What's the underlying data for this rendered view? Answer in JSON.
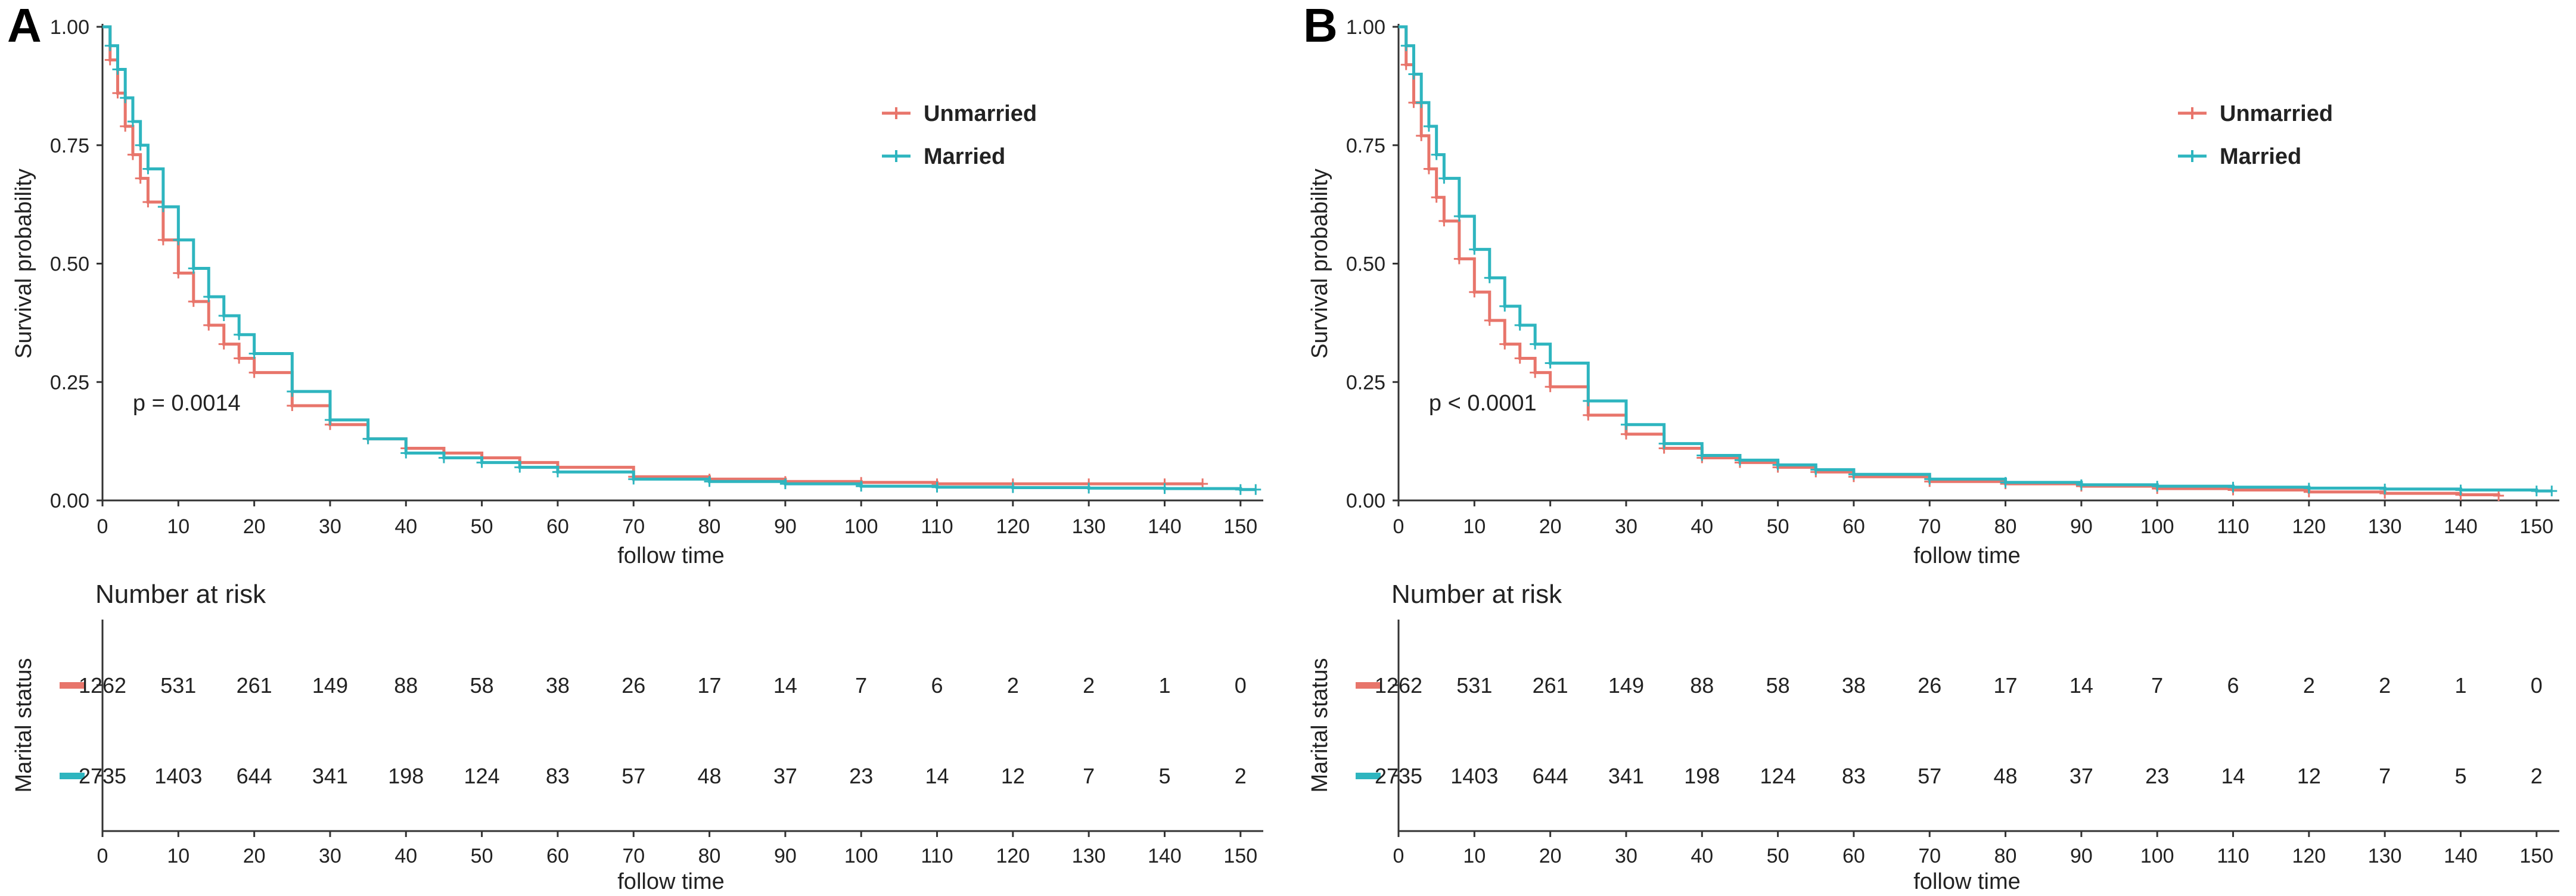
{
  "chart_data": [
    {
      "type": "line",
      "panel": "A",
      "xlabel": "follow time",
      "ylabel": "Survival probability",
      "xticks": [
        0,
        10,
        20,
        30,
        40,
        50,
        60,
        70,
        80,
        90,
        100,
        110,
        120,
        130,
        140,
        150
      ],
      "yticks": [
        "0.00",
        "0.25",
        "0.50",
        "0.75",
        "1.00"
      ],
      "xlim": [
        0,
        153
      ],
      "ylim": [
        0,
        1
      ],
      "pvalue": "p = 0.0014",
      "legend": {
        "position": "top-right",
        "entries": [
          "Unmarried",
          "Married"
        ]
      },
      "series": [
        {
          "name": "Unmarried",
          "color": "#E8756B",
          "x": [
            0,
            1,
            2,
            3,
            4,
            5,
            6,
            8,
            10,
            12,
            14,
            16,
            18,
            20,
            25,
            30,
            35,
            40,
            45,
            50,
            55,
            60,
            70,
            80,
            90,
            100,
            110,
            120,
            130,
            140,
            145
          ],
          "y": [
            1.0,
            0.93,
            0.86,
            0.79,
            0.73,
            0.68,
            0.63,
            0.55,
            0.48,
            0.42,
            0.37,
            0.33,
            0.3,
            0.27,
            0.2,
            0.16,
            0.13,
            0.11,
            0.1,
            0.09,
            0.08,
            0.07,
            0.05,
            0.045,
            0.04,
            0.038,
            0.035,
            0.035,
            0.035,
            0.035,
            0.035
          ]
        },
        {
          "name": "Married",
          "color": "#2EB5BF",
          "x": [
            0,
            1,
            2,
            3,
            4,
            5,
            6,
            8,
            10,
            12,
            14,
            16,
            18,
            20,
            25,
            30,
            35,
            40,
            45,
            50,
            55,
            60,
            70,
            80,
            90,
            100,
            110,
            120,
            130,
            140,
            150,
            152
          ],
          "y": [
            1.0,
            0.96,
            0.91,
            0.85,
            0.8,
            0.75,
            0.7,
            0.62,
            0.55,
            0.49,
            0.43,
            0.39,
            0.35,
            0.31,
            0.23,
            0.17,
            0.13,
            0.1,
            0.09,
            0.08,
            0.07,
            0.06,
            0.045,
            0.04,
            0.035,
            0.03,
            0.028,
            0.027,
            0.026,
            0.025,
            0.023,
            0.023
          ]
        }
      ],
      "risk_table": {
        "title": "Number at risk",
        "ylabel": "Marital status",
        "xlabel": "follow time",
        "times": [
          0,
          10,
          20,
          30,
          40,
          50,
          60,
          70,
          80,
          90,
          100,
          110,
          120,
          130,
          140,
          150
        ],
        "rows": [
          {
            "name": "Unmarried",
            "color": "#E8756B",
            "values": [
              "1262",
              "531",
              "261",
              "149",
              "88",
              "58",
              "38",
              "26",
              "17",
              "14",
              "7",
              "6",
              "2",
              "2",
              "1",
              "0"
            ]
          },
          {
            "name": "Married",
            "color": "#2EB5BF",
            "values": [
              "2735",
              "1403",
              "644",
              "341",
              "198",
              "124",
              "83",
              "57",
              "48",
              "37",
              "23",
              "14",
              "12",
              "7",
              "5",
              "2"
            ]
          }
        ]
      }
    },
    {
      "type": "line",
      "panel": "B",
      "xlabel": "follow time",
      "ylabel": "Survival probability",
      "xticks": [
        0,
        10,
        20,
        30,
        40,
        50,
        60,
        70,
        80,
        90,
        100,
        110,
        120,
        130,
        140,
        150
      ],
      "yticks": [
        "0.00",
        "0.25",
        "0.50",
        "0.75",
        "1.00"
      ],
      "xlim": [
        0,
        153
      ],
      "ylim": [
        0,
        1
      ],
      "pvalue": "p < 0.0001",
      "legend": {
        "position": "top-right",
        "entries": [
          "Unmarried",
          "Married"
        ]
      },
      "series": [
        {
          "name": "Unmarried",
          "color": "#E8756B",
          "x": [
            0,
            1,
            2,
            3,
            4,
            5,
            6,
            8,
            10,
            12,
            14,
            16,
            18,
            20,
            25,
            30,
            35,
            40,
            45,
            50,
            55,
            60,
            70,
            80,
            90,
            100,
            110,
            120,
            130,
            140,
            145
          ],
          "y": [
            1.0,
            0.92,
            0.84,
            0.77,
            0.7,
            0.64,
            0.59,
            0.51,
            0.44,
            0.38,
            0.33,
            0.3,
            0.27,
            0.24,
            0.18,
            0.14,
            0.11,
            0.09,
            0.08,
            0.07,
            0.06,
            0.05,
            0.04,
            0.035,
            0.03,
            0.025,
            0.022,
            0.018,
            0.015,
            0.012,
            0.01
          ]
        },
        {
          "name": "Married",
          "color": "#2EB5BF",
          "x": [
            0,
            1,
            2,
            3,
            4,
            5,
            6,
            8,
            10,
            12,
            14,
            16,
            18,
            20,
            25,
            30,
            35,
            40,
            45,
            50,
            55,
            60,
            70,
            80,
            90,
            100,
            110,
            120,
            130,
            140,
            150,
            152
          ],
          "y": [
            1.0,
            0.96,
            0.9,
            0.84,
            0.79,
            0.73,
            0.68,
            0.6,
            0.53,
            0.47,
            0.41,
            0.37,
            0.33,
            0.29,
            0.21,
            0.16,
            0.12,
            0.095,
            0.085,
            0.075,
            0.065,
            0.055,
            0.045,
            0.038,
            0.033,
            0.03,
            0.028,
            0.026,
            0.024,
            0.022,
            0.02,
            0.02
          ]
        }
      ],
      "risk_table": {
        "title": "Number at risk",
        "ylabel": "Marital status",
        "xlabel": "follow time",
        "times": [
          0,
          10,
          20,
          30,
          40,
          50,
          60,
          70,
          80,
          90,
          100,
          110,
          120,
          130,
          140,
          150
        ],
        "rows": [
          {
            "name": "Unmarried",
            "color": "#E8756B",
            "values": [
              "1262",
              "531",
              "261",
              "149",
              "88",
              "58",
              "38",
              "26",
              "17",
              "14",
              "7",
              "6",
              "2",
              "2",
              "1",
              "0"
            ]
          },
          {
            "name": "Married",
            "color": "#2EB5BF",
            "values": [
              "2735",
              "1403",
              "644",
              "341",
              "198",
              "124",
              "83",
              "57",
              "48",
              "37",
              "23",
              "14",
              "12",
              "7",
              "5",
              "2"
            ]
          }
        ]
      }
    }
  ]
}
